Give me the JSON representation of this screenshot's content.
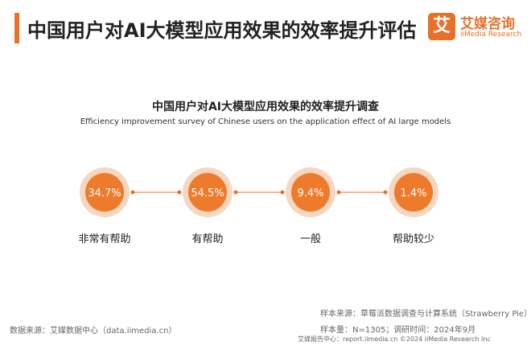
{
  "header": {
    "title": "中国用户对AI大模型应用效果的效率提升评估"
  },
  "logo": {
    "mark": "艾",
    "name_cn": "艾媒咨询",
    "name_en": "iiMedia Research"
  },
  "colors": {
    "accent": "#e8702a",
    "circle_fill": "#ee7a2c",
    "ring": "#f7d7c0",
    "connector": "#e8702a"
  },
  "chart_data": {
    "type": "bubble-row",
    "title": "中国用户对AI大模型应用效果的效率提升调查",
    "subtitle": "Efficiency improvement survey of Chinese users on the application effect of AI large models",
    "categories": [
      "非常有帮助",
      "有帮助",
      "一般",
      "帮助较少"
    ],
    "values": [
      34.7,
      54.5,
      9.4,
      1.4
    ],
    "value_labels": [
      "34.7%",
      "54.5%",
      "9.4%",
      "1.4%"
    ],
    "unit": "%"
  },
  "footer": {
    "data_source": "数据来源：艾媒数据中心（data.iimedia.cn）",
    "sample_source": "样本来源：草莓派数据调查与计算系统（Strawberry Pie）",
    "sample_info": "样本量：N=1305；调研时间：2024年9月",
    "bottom_line": "艾媒报告中心：report.iimedia.cn    ©2024 iiMedia Research Inc"
  }
}
